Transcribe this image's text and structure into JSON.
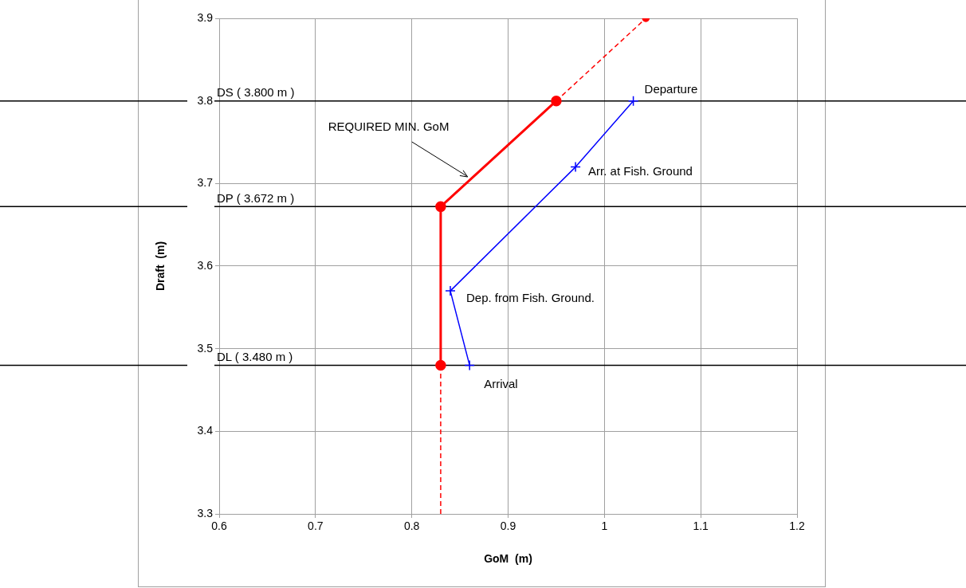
{
  "chart_data": {
    "type": "line",
    "xlabel": "GoM  (m)",
    "ylabel": "Draft  (m)",
    "xlim": [
      0.6,
      1.2
    ],
    "xticks": [
      0.6,
      0.7,
      0.8,
      0.9,
      1,
      1.1,
      1.2
    ],
    "ylim": [
      3.3,
      3.9
    ],
    "yticks": [
      3.3,
      3.4,
      3.5,
      3.6,
      3.7,
      3.8,
      3.9
    ],
    "grid": true,
    "legend": false,
    "series": [
      {
        "color": "#ff0000",
        "x": [
          0.83,
          0.83,
          0.95
        ],
        "values": [
          3.48,
          3.672,
          3.8
        ],
        "marker": "circle",
        "line_style": "solid"
      },
      {
        "color": "#ff0000",
        "x": [
          0.83,
          0.83
        ],
        "values": [
          3.3,
          3.48
        ],
        "marker": "none",
        "line_style": "dashed"
      },
      {
        "color": "#ff0000",
        "x": [
          0.95,
          1.043
        ],
        "values": [
          3.8,
          3.9
        ],
        "marker": "circle",
        "line_style": "dashed"
      },
      {
        "color": "#0000ff",
        "x": [
          1.03,
          0.97,
          0.84,
          0.86
        ],
        "values": [
          3.8,
          3.72,
          3.57,
          3.48
        ],
        "marker": "cross",
        "line_style": "solid"
      }
    ],
    "ref_lines": [
      {
        "axis": "y",
        "value": 3.8,
        "label": "DS ( 3.800 m )",
        "color": "#000000"
      },
      {
        "axis": "y",
        "value": 3.672,
        "label": "DP ( 3.672 m )",
        "color": "#000000"
      },
      {
        "axis": "y",
        "value": 3.48,
        "label": "DL ( 3.480 m )",
        "color": "#000000"
      }
    ],
    "annotations": [
      {
        "text": "REQUIRED MIN. GoM",
        "x": 0.858,
        "y": 3.708
      },
      {
        "text": "Departure",
        "x": 1.03,
        "y": 3.8
      },
      {
        "text": "Arr. at Fish. Ground",
        "x": 0.97,
        "y": 3.72
      },
      {
        "text": "Dep. from Fish. Ground.",
        "x": 0.84,
        "y": 3.57
      },
      {
        "text": "Arrival",
        "x": 0.86,
        "y": 3.48
      }
    ]
  }
}
